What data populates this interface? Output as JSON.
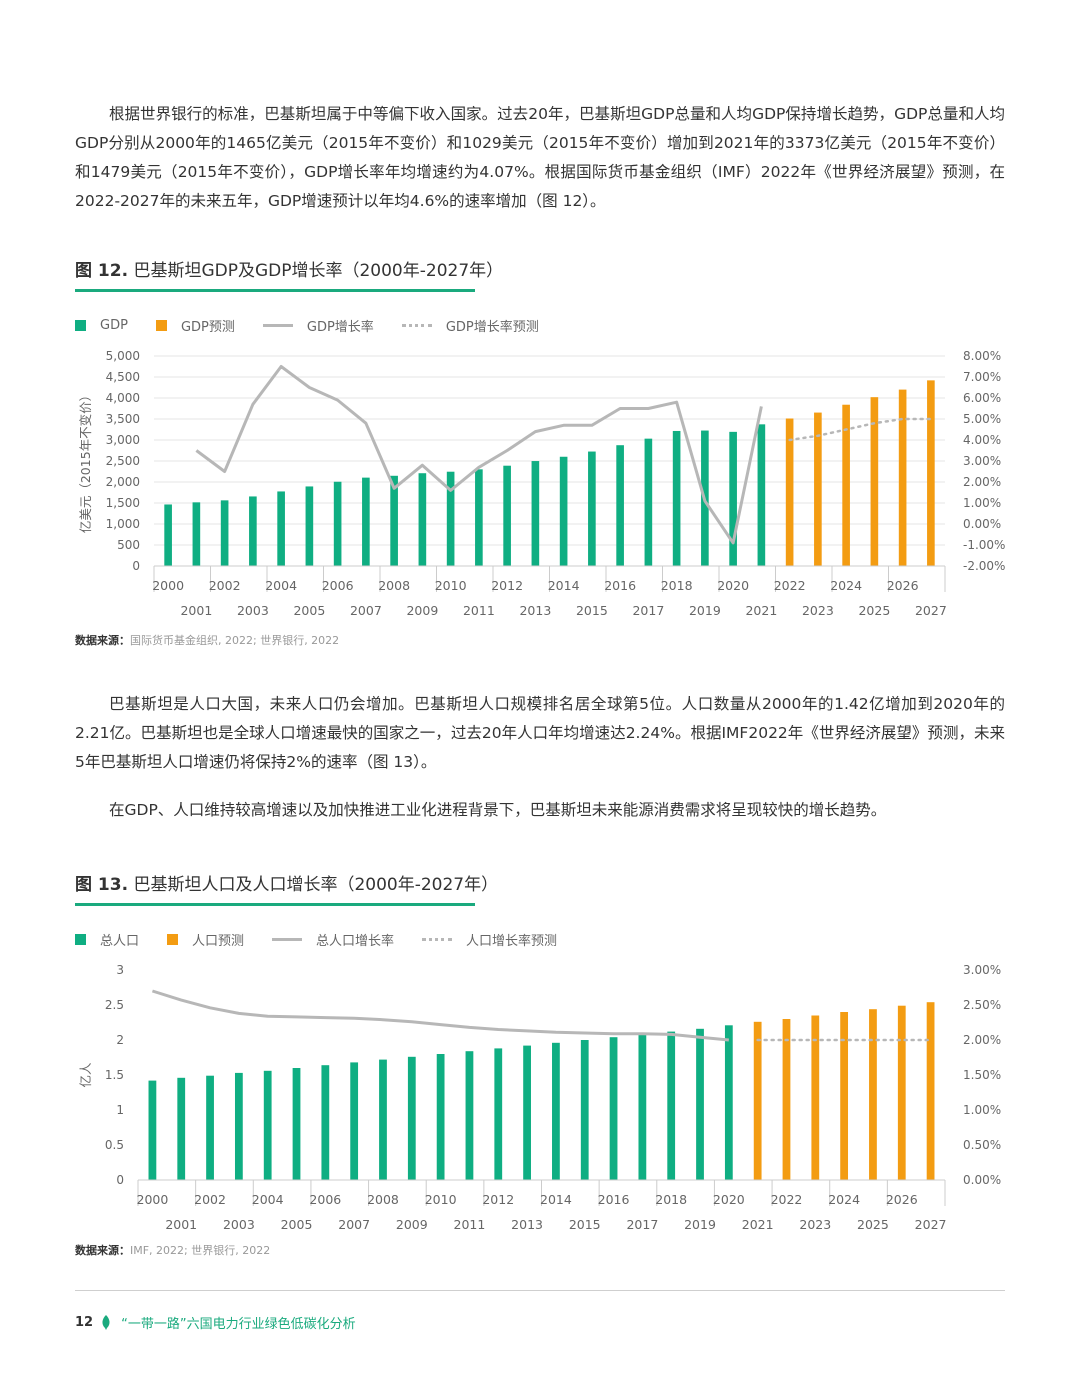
{
  "paragraphs": {
    "p1": "根据世界银行的标准，巴基斯坦属于中等偏下收入国家。过去20年，巴基斯坦GDP总量和人均GDP保持增长趋势，GDP总量和人均GDP分别从2000年的1465亿美元（2015年不变价）和1029美元（2015年不变价）增加到2021年的3373亿美元（2015年不变价）和1479美元（2015年不变价），GDP增长率年均增速约为4.07%。根据国际货币基金组织（IMF）2022年《世界经济展望》预测，在2022-2027年的未来五年，GDP增速预计以年均4.6%的速率增加（图 12）。",
    "p2": "巴基斯坦是人口大国，未来人口仍会增加。巴基斯坦人口规模排名居全球第5位。人口数量从2000年的1.42亿增加到2020年的2.21亿。巴基斯坦也是全球人口增速最快的国家之一，过去20年人口年均增速达2.24%。根据IMF2022年《世界经济展望》预测，未来5年巴基斯坦人口增速仍将保持2%的速率（图 13）。",
    "p3": "在GDP、人口维持较高增速以及加快推进工业化进程背景下，巴基斯坦未来能源消费需求将呈现较快的增长趋势。"
  },
  "fig12": {
    "label": "图 12.",
    "title": "巴基斯坦GDP及GDP增长率（2000年-2027年）",
    "legend": [
      "GDP",
      "GDP预测",
      "GDP增长率",
      "GDP增长率预测"
    ],
    "source_label": "数据来源：",
    "source_text": "国际货币基金组织, 2022; 世界银行, 2022"
  },
  "fig13": {
    "label": "图 13.",
    "title": "巴基斯坦人口及人口增长率（2000年-2027年）",
    "legend": [
      "总人口",
      "人口预测",
      "总人口增长率",
      "人口增长率预测"
    ],
    "source_label": "数据来源：",
    "source_text": "IMF, 2022; 世界银行, 2022"
  },
  "footer": {
    "page": "12",
    "text": "“一带一路”六国电力行业绿色低碳化分析"
  },
  "colors": {
    "actual": "#0fae82",
    "forecast": "#f39c12",
    "line": "#b7b7b7",
    "accent": "#1aaa7e"
  },
  "chart_data": [
    {
      "type": "bar",
      "title": "巴基斯坦GDP及GDP增长率（2000年-2027年）",
      "categories": [
        "2000",
        "2001",
        "2002",
        "2003",
        "2004",
        "2005",
        "2006",
        "2007",
        "2008",
        "2009",
        "2010",
        "2011",
        "2012",
        "2013",
        "2014",
        "2015",
        "2016",
        "2017",
        "2018",
        "2019",
        "2020",
        "2021",
        "2022",
        "2023",
        "2024",
        "2025",
        "2026",
        "2027"
      ],
      "ylabel": "亿美元（2015年不变价）",
      "ylim": [
        0,
        5000
      ],
      "yticks": [
        "0",
        "500",
        "1,000",
        "1,500",
        "2,000",
        "2,500",
        "3,000",
        "3,500",
        "4,000",
        "4,500",
        "5,000"
      ],
      "y2lim": [
        -2,
        8
      ],
      "y2ticks": [
        "-2.00%",
        "-1.00%",
        "0.00%",
        "1.00%",
        "2.00%",
        "3.00%",
        "4.00%",
        "5.00%",
        "6.00%",
        "7.00%",
        "8.00%"
      ],
      "grid": true,
      "legend_position": "top-left",
      "series": [
        {
          "name": "GDP",
          "kind": "bar",
          "values": [
            1465,
            1516,
            1563,
            1656,
            1775,
            1894,
            2006,
            2104,
            2148,
            2209,
            2245,
            2302,
            2388,
            2499,
            2601,
            2725,
            2876,
            3032,
            3215,
            3225,
            3194,
            3373,
            null,
            null,
            null,
            null,
            null,
            null
          ]
        },
        {
          "name": "GDP预测",
          "kind": "bar",
          "values": [
            null,
            null,
            null,
            null,
            null,
            null,
            null,
            null,
            null,
            null,
            null,
            null,
            null,
            null,
            null,
            null,
            null,
            null,
            null,
            null,
            null,
            null,
            3512,
            3653,
            3840,
            4020,
            4200,
            4420
          ]
        },
        {
          "name": "GDP增长率",
          "kind": "line",
          "axis": "right",
          "values": [
            null,
            3.5,
            2.5,
            5.7,
            7.5,
            6.5,
            5.9,
            4.8,
            1.7,
            2.8,
            1.6,
            2.7,
            3.5,
            4.4,
            4.7,
            4.7,
            5.5,
            5.5,
            5.8,
            1.1,
            -0.9,
            5.6,
            null,
            null,
            null,
            null,
            null,
            null
          ]
        },
        {
          "name": "GDP增长率预测",
          "kind": "line",
          "style": "dotted",
          "axis": "right",
          "values": [
            null,
            null,
            null,
            null,
            null,
            null,
            null,
            null,
            null,
            null,
            null,
            null,
            null,
            null,
            null,
            null,
            null,
            null,
            null,
            null,
            null,
            null,
            4.0,
            4.2,
            4.5,
            4.8,
            5.0,
            5.0
          ]
        }
      ]
    },
    {
      "type": "bar",
      "title": "巴基斯坦人口及人口增长率（2000年-2027年）",
      "categories": [
        "2000",
        "2001",
        "2002",
        "2003",
        "2004",
        "2005",
        "2006",
        "2007",
        "2008",
        "2009",
        "2010",
        "2011",
        "2012",
        "2013",
        "2014",
        "2015",
        "2016",
        "2017",
        "2018",
        "2019",
        "2020",
        "2021",
        "2022",
        "2023",
        "2024",
        "2025",
        "2026",
        "2027"
      ],
      "ylabel": "亿人",
      "ylim": [
        0,
        3
      ],
      "yticks": [
        "0",
        "0.5",
        "1",
        "1.5",
        "2",
        "2.5",
        "3"
      ],
      "y2lim": [
        0,
        3
      ],
      "y2ticks": [
        "0.00%",
        "0.50%",
        "1.00%",
        "1.50%",
        "2.00%",
        "2.50%",
        "3.00%"
      ],
      "grid": false,
      "legend_position": "top-left",
      "series": [
        {
          "name": "总人口",
          "kind": "bar",
          "values": [
            1.42,
            1.46,
            1.49,
            1.53,
            1.56,
            1.6,
            1.64,
            1.68,
            1.72,
            1.76,
            1.8,
            1.84,
            1.88,
            1.92,
            1.96,
            2.0,
            2.04,
            2.08,
            2.12,
            2.16,
            2.21,
            null,
            null,
            null,
            null,
            null,
            null,
            null
          ]
        },
        {
          "name": "人口预测",
          "kind": "bar",
          "values": [
            null,
            null,
            null,
            null,
            null,
            null,
            null,
            null,
            null,
            null,
            null,
            null,
            null,
            null,
            null,
            null,
            null,
            null,
            null,
            null,
            null,
            2.26,
            2.3,
            2.35,
            2.4,
            2.44,
            2.49,
            2.54
          ]
        },
        {
          "name": "总人口增长率",
          "kind": "line",
          "axis": "right",
          "values": [
            2.7,
            2.57,
            2.46,
            2.38,
            2.34,
            2.33,
            2.32,
            2.31,
            2.29,
            2.26,
            2.22,
            2.18,
            2.15,
            2.13,
            2.11,
            2.1,
            2.09,
            2.09,
            2.08,
            2.04,
            2.0,
            null,
            null,
            null,
            null,
            null,
            null,
            null
          ]
        },
        {
          "name": "人口增长率预测",
          "kind": "line",
          "style": "dotted",
          "axis": "right",
          "values": [
            null,
            null,
            null,
            null,
            null,
            null,
            null,
            null,
            null,
            null,
            null,
            null,
            null,
            null,
            null,
            null,
            null,
            null,
            null,
            null,
            null,
            2.0,
            2.0,
            2.0,
            2.0,
            2.0,
            2.0,
            2.0
          ]
        }
      ]
    }
  ]
}
